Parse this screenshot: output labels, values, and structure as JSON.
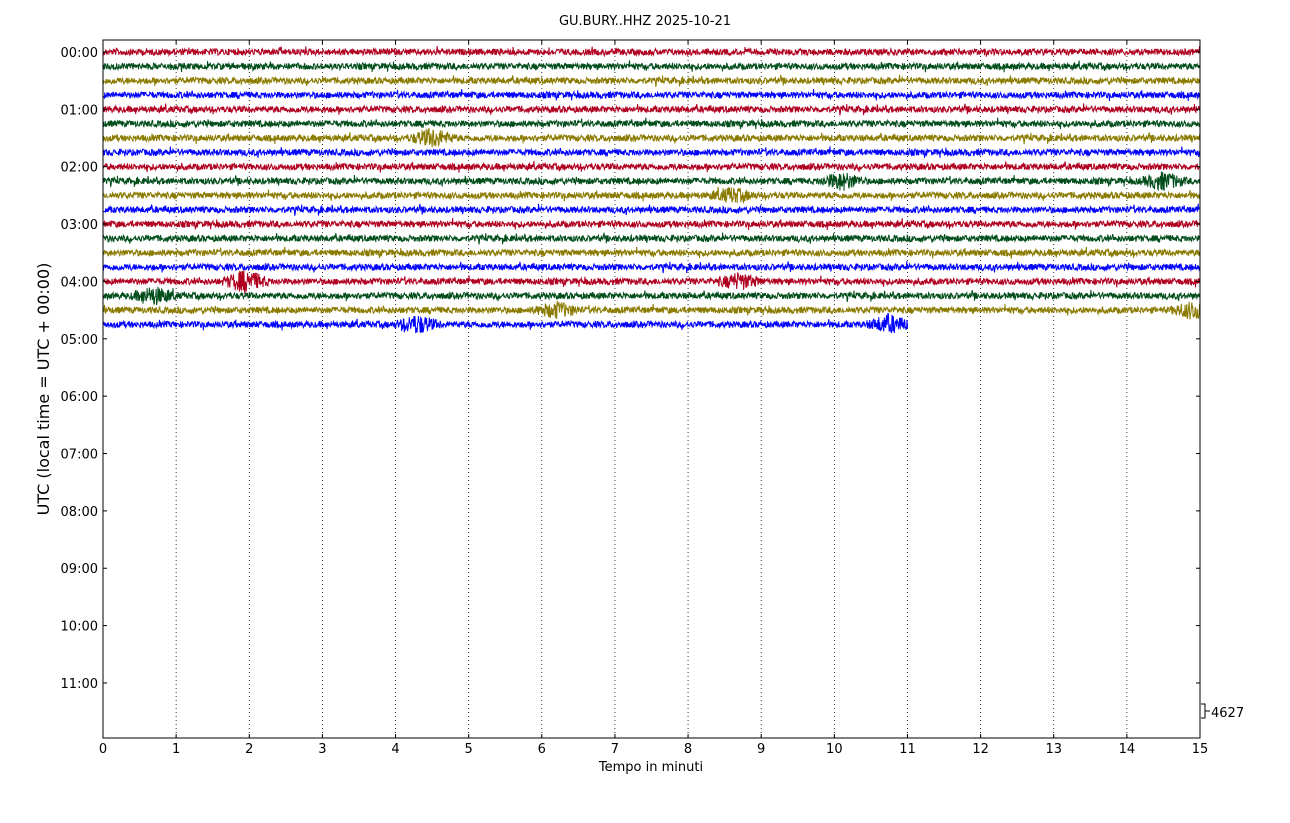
{
  "chart_data": {
    "type": "line",
    "title": "GU.BURY..HHZ 2025-10-21",
    "xlabel": "Tempo in minuti",
    "ylabel": "UTC (local time = UTC + 00:00)",
    "xlim": [
      0,
      15
    ],
    "x_ticks": [
      "0",
      "1",
      "2",
      "3",
      "4",
      "5",
      "6",
      "7",
      "8",
      "9",
      "10",
      "11",
      "12",
      "13",
      "14",
      "15"
    ],
    "y_ticks": [
      "00:00",
      "01:00",
      "02:00",
      "03:00",
      "04:00",
      "05:00",
      "06:00",
      "07:00",
      "08:00",
      "09:00",
      "10:00",
      "11:00"
    ],
    "grid": "vertical dotted lines at each minute",
    "scale_label": "4627",
    "line_colors": [
      "#b00020",
      "#004d1a",
      "#8a7a00",
      "#0000ff"
    ],
    "trace_minutes_per_line": 15,
    "traces_count": 20,
    "last_trace_end_minute": 11.0,
    "events": [
      {
        "trace": 6,
        "minute": 4.5,
        "amplitude": 2.0
      },
      {
        "trace": 9,
        "minute": 10.1,
        "amplitude": 1.8
      },
      {
        "trace": 9,
        "minute": 14.5,
        "amplitude": 1.8
      },
      {
        "trace": 10,
        "minute": 8.6,
        "amplitude": 1.5
      },
      {
        "trace": 16,
        "minute": 1.95,
        "amplitude": 2.4
      },
      {
        "trace": 16,
        "minute": 8.7,
        "amplitude": 1.7
      },
      {
        "trace": 17,
        "minute": 0.7,
        "amplitude": 1.8
      },
      {
        "trace": 18,
        "minute": 6.2,
        "amplitude": 1.6
      },
      {
        "trace": 18,
        "minute": 14.9,
        "amplitude": 1.8
      },
      {
        "trace": 19,
        "minute": 4.3,
        "amplitude": 1.9
      },
      {
        "trace": 19,
        "minute": 10.75,
        "amplitude": 1.9
      }
    ]
  }
}
